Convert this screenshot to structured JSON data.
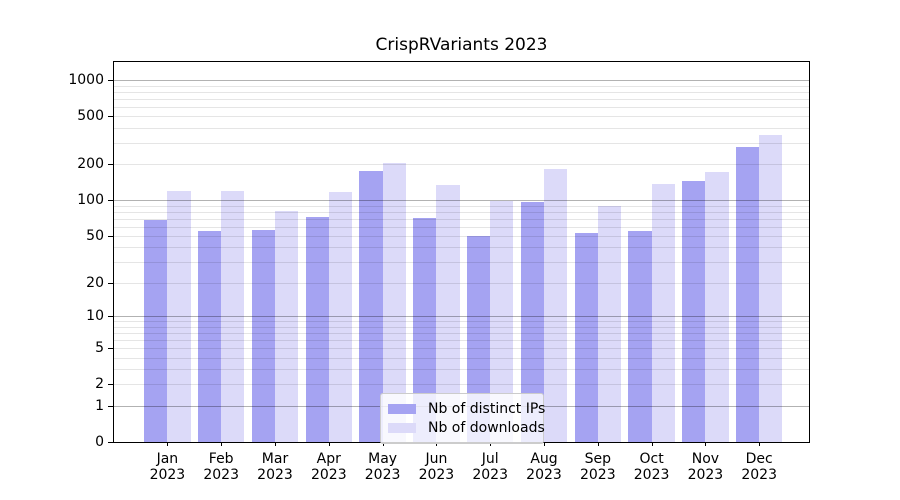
{
  "chart_data": {
    "type": "bar",
    "title": "CrispRVariants 2023",
    "xlabel": "",
    "ylabel": "",
    "x_year_label": "2023",
    "categories": [
      "Jan",
      "Feb",
      "Mar",
      "Apr",
      "May",
      "Jun",
      "Jul",
      "Aug",
      "Sep",
      "Oct",
      "Nov",
      "Dec"
    ],
    "series": [
      {
        "name": "Nb of distinct IPs",
        "color": "#a5a3f2",
        "values": [
          68,
          55,
          56,
          72,
          174,
          71,
          50,
          97,
          53,
          55,
          144,
          276
        ]
      },
      {
        "name": "Nb of downloads",
        "color": "#dcdaf9",
        "values": [
          119,
          120,
          81,
          118,
          204,
          133,
          98,
          183,
          89,
          137,
          173,
          350
        ]
      }
    ],
    "y_scale": "log10(value+1)",
    "y_ticks": [
      0,
      1,
      2,
      5,
      10,
      20,
      50,
      100,
      200,
      500,
      1000
    ],
    "y_axis_top_value": 1410,
    "grid": "horizontal",
    "grid_major_lines": [
      1,
      10,
      100,
      1000
    ],
    "legend_position": "lower center",
    "colors": {
      "axis": "#000000",
      "major_grid": "#b3b3b3",
      "minor_grid": "#e6e6e6",
      "legend_border": "#cccccc",
      "background": "#ffffff"
    }
  }
}
